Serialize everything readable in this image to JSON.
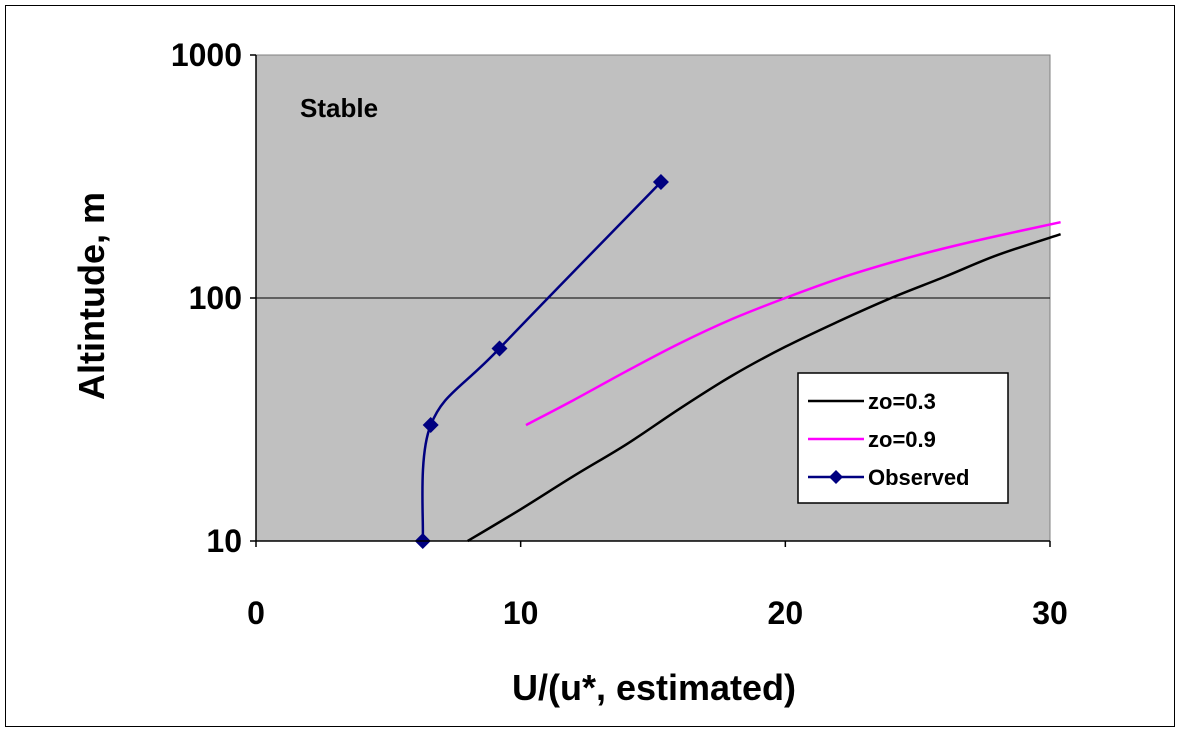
{
  "chart_data": {
    "type": "line",
    "title": "",
    "annotation": "Stable",
    "xlabel": "U/(u*, estimated)",
    "ylabel": "Altintude, m",
    "xlim": [
      0,
      30
    ],
    "ylim": [
      10,
      1000
    ],
    "y_scale": "log",
    "x_ticks": [
      "0",
      "10",
      "20",
      "30"
    ],
    "y_ticks": [
      "10",
      "100",
      "1000"
    ],
    "grid": "horizontal at 100",
    "legend_position": "right",
    "plot_background": "#c0c0c0",
    "series": [
      {
        "name": "zo=0.3",
        "color": "#000000",
        "marker": "none",
        "x": [
          8.0,
          10.0,
          12.0,
          14.0,
          16.0,
          18.0,
          20.0,
          22.0,
          24.0,
          26.0,
          28.0,
          30.4
        ],
        "y": [
          10,
          13.5,
          18.5,
          25,
          35,
          48,
          63,
          80,
          100,
          122,
          150,
          183
        ]
      },
      {
        "name": "zo=0.9",
        "color": "#ff00ff",
        "marker": "none",
        "x": [
          10.2,
          12.0,
          14.0,
          16.0,
          18.0,
          20.0,
          22.0,
          24.0,
          26.0,
          28.0,
          30.4
        ],
        "y": [
          30,
          38,
          50,
          65,
          82,
          100,
          120,
          140,
          160,
          180,
          205
        ]
      },
      {
        "name": "Observed",
        "color": "#000080",
        "marker": "diamond",
        "x": [
          6.3,
          6.6,
          9.2,
          15.3
        ],
        "y": [
          10,
          30,
          62,
          300
        ]
      }
    ]
  },
  "icons": {
    "legend_marker": "diamond-icon"
  }
}
